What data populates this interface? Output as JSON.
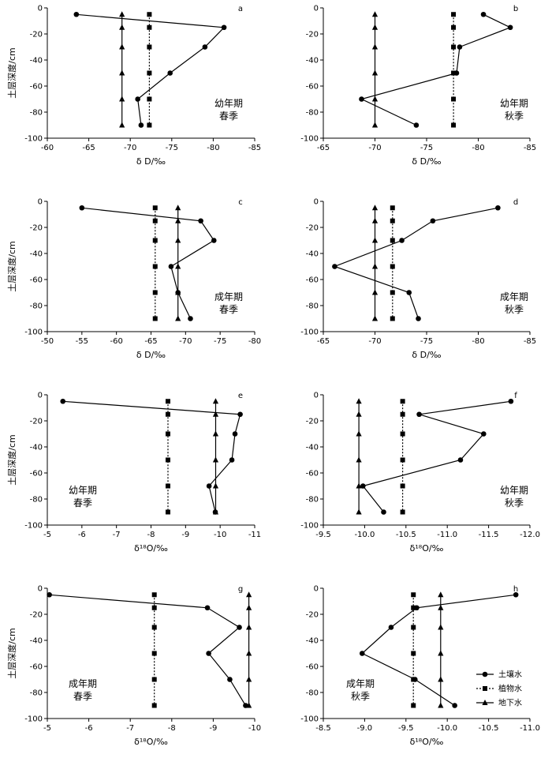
{
  "colors": {
    "ink": "#000000",
    "background": "#ffffff"
  },
  "legend": [
    {
      "label": "土壤水",
      "marker": "circle",
      "line": "solid"
    },
    {
      "label": "植物水",
      "marker": "square",
      "line": "dotted"
    },
    {
      "label": "地下水",
      "marker": "triangle",
      "line": "solid"
    }
  ],
  "chart_data": [
    {
      "id": "a",
      "type": "line",
      "letter": "a",
      "note": [
        "幼年期",
        "春季"
      ],
      "xlabel": "δ D/‰",
      "ylabel": "土层深度/cm",
      "xlim": [
        -60,
        -85
      ],
      "ylim": [
        -100,
        0
      ],
      "xticks": [
        -60,
        -65,
        -70,
        -75,
        -80,
        -85
      ],
      "yticks": [
        0,
        -20,
        -40,
        -60,
        -80,
        -100
      ],
      "xtick_labels": [
        "-60",
        "-65",
        "-70",
        "-75",
        "-80",
        "-85"
      ],
      "ytick_labels": [
        "0",
        "-20",
        "-40",
        "-60",
        "-80",
        "-100"
      ],
      "series": [
        {
          "name": "土壤水",
          "marker": "circle",
          "dash": "solid",
          "x": [
            -63.5,
            -81.3,
            -79.0,
            -74.8,
            -70.9,
            -71.3
          ],
          "y": [
            -5,
            -15,
            -30,
            -50,
            -70,
            -90
          ]
        },
        {
          "name": "植物水",
          "marker": "square",
          "dash": "dotted",
          "x": [
            -72.3,
            -72.3,
            -72.3,
            -72.3,
            -72.3,
            -72.3
          ],
          "y": [
            -5,
            -15,
            -30,
            -50,
            -70,
            -90
          ]
        },
        {
          "name": "地下水",
          "marker": "triangle",
          "dash": "solid",
          "x": [
            -69.0,
            -69.0,
            -69.0,
            -69.0,
            -69.0,
            -69.0
          ],
          "y": [
            -5,
            -15,
            -30,
            -50,
            -70,
            -90
          ]
        }
      ]
    },
    {
      "id": "b",
      "type": "line",
      "letter": "b",
      "note": [
        "幼年期",
        "秋季"
      ],
      "xlabel": "δ D/‰",
      "ylabel": "",
      "xlim": [
        -65,
        -85
      ],
      "ylim": [
        -100,
        0
      ],
      "xticks": [
        -65,
        -70,
        -75,
        -80,
        -85
      ],
      "yticks": [
        0,
        -20,
        -40,
        -60,
        -80,
        -100
      ],
      "xtick_labels": [
        "-65",
        "-70",
        "-75",
        "-80",
        "-85"
      ],
      "ytick_labels": [
        "0",
        "-20",
        "-40",
        "-60",
        "-80",
        "-100"
      ],
      "series": [
        {
          "name": "土壤水",
          "marker": "circle",
          "dash": "solid",
          "x": [
            -80.5,
            -83.1,
            -78.2,
            -77.9,
            -68.7,
            -74.0
          ],
          "y": [
            -5,
            -15,
            -30,
            -50,
            -70,
            -90
          ]
        },
        {
          "name": "植物水",
          "marker": "square",
          "dash": "dotted",
          "x": [
            -77.6,
            -77.6,
            -77.6,
            -77.6,
            -77.6,
            -77.6
          ],
          "y": [
            -5,
            -15,
            -30,
            -50,
            -70,
            -90
          ]
        },
        {
          "name": "地下水",
          "marker": "triangle",
          "dash": "solid",
          "x": [
            -70.0,
            -70.0,
            -70.0,
            -70.0,
            -70.0,
            -70.0
          ],
          "y": [
            -5,
            -15,
            -30,
            -50,
            -70,
            -90
          ]
        }
      ]
    },
    {
      "id": "c",
      "type": "line",
      "letter": "c",
      "note": [
        "成年期",
        "春季"
      ],
      "xlabel": "δ D/‰",
      "ylabel": "土层深度/cm",
      "xlim": [
        -50,
        -80
      ],
      "ylim": [
        -100,
        0
      ],
      "xticks": [
        -50,
        -55,
        -60,
        -65,
        -70,
        -75,
        -80
      ],
      "yticks": [
        0,
        -20,
        -40,
        -60,
        -80,
        -100
      ],
      "xtick_labels": [
        "-50",
        "-55",
        "-60",
        "-65",
        "-70",
        "-75",
        "-80"
      ],
      "ytick_labels": [
        "0",
        "-20",
        "-40",
        "-60",
        "-80",
        "-100"
      ],
      "series": [
        {
          "name": "土壤水",
          "marker": "circle",
          "dash": "solid",
          "x": [
            -55.0,
            -72.2,
            -74.1,
            -67.9,
            -68.9,
            -70.7
          ],
          "y": [
            -5,
            -15,
            -30,
            -50,
            -70,
            -90
          ]
        },
        {
          "name": "植物水",
          "marker": "square",
          "dash": "dotted",
          "x": [
            -65.6,
            -65.6,
            -65.6,
            -65.6,
            -65.6,
            -65.6
          ],
          "y": [
            -5,
            -15,
            -30,
            -50,
            -70,
            -90
          ]
        },
        {
          "name": "地下水",
          "marker": "triangle",
          "dash": "solid",
          "x": [
            -68.9,
            -68.9,
            -68.9,
            -68.9,
            -68.9,
            -68.9
          ],
          "y": [
            -5,
            -15,
            -30,
            -50,
            -70,
            -90
          ]
        }
      ]
    },
    {
      "id": "d",
      "type": "line",
      "letter": "d",
      "note": [
        "成年期",
        "秋季"
      ],
      "xlabel": "δ D/‰",
      "ylabel": "",
      "xlim": [
        -65,
        -85
      ],
      "ylim": [
        -100,
        0
      ],
      "xticks": [
        -65,
        -70,
        -75,
        -80,
        -85
      ],
      "yticks": [
        0,
        -20,
        -40,
        -60,
        -80,
        -100
      ],
      "xtick_labels": [
        "-65",
        "-70",
        "-75",
        "-80",
        "-85"
      ],
      "ytick_labels": [
        "0",
        "-20",
        "-40",
        "-60",
        "-80",
        "-100"
      ],
      "series": [
        {
          "name": "土壤水",
          "marker": "circle",
          "dash": "solid",
          "x": [
            -81.9,
            -75.6,
            -72.6,
            -66.1,
            -73.3,
            -74.2
          ],
          "y": [
            -5,
            -15,
            -30,
            -50,
            -70,
            -90
          ]
        },
        {
          "name": "植物水",
          "marker": "square",
          "dash": "dotted",
          "x": [
            -71.7,
            -71.7,
            -71.7,
            -71.7,
            -71.7,
            -71.7
          ],
          "y": [
            -5,
            -15,
            -30,
            -50,
            -70,
            -90
          ]
        },
        {
          "name": "地下水",
          "marker": "triangle",
          "dash": "solid",
          "x": [
            -70.0,
            -70.0,
            -70.0,
            -70.0,
            -70.0,
            -70.0
          ],
          "y": [
            -5,
            -15,
            -30,
            -50,
            -70,
            -90
          ]
        }
      ]
    },
    {
      "id": "e",
      "type": "line",
      "letter": "e",
      "note": [
        "幼年期",
        "春季"
      ],
      "xlabel": "δ¹⁸O/‰",
      "ylabel": "土层深度/cm",
      "xlim": [
        -5,
        -11
      ],
      "ylim": [
        -100,
        0
      ],
      "xticks": [
        -5,
        -6,
        -7,
        -8,
        -9,
        -10,
        -11
      ],
      "yticks": [
        0,
        -20,
        -40,
        -60,
        -80,
        -100
      ],
      "xtick_labels": [
        "-5",
        "-6",
        "-7",
        "-8",
        "-9",
        "-10",
        "-11"
      ],
      "ytick_labels": [
        "0",
        "-20",
        "-40",
        "-60",
        "-80",
        "-100"
      ],
      "series": [
        {
          "name": "土壤水",
          "marker": "circle",
          "dash": "solid",
          "x": [
            -5.45,
            -10.58,
            -10.43,
            -10.34,
            -9.68,
            -9.86
          ],
          "y": [
            -5,
            -15,
            -30,
            -50,
            -70,
            -90
          ]
        },
        {
          "name": "植物水",
          "marker": "square",
          "dash": "dotted",
          "x": [
            -8.49,
            -8.49,
            -8.49,
            -8.49,
            -8.49,
            -8.49
          ],
          "y": [
            -5,
            -15,
            -30,
            -50,
            -70,
            -90
          ]
        },
        {
          "name": "地下水",
          "marker": "triangle",
          "dash": "solid",
          "x": [
            -9.87,
            -9.87,
            -9.87,
            -9.87,
            -9.87,
            -9.87
          ],
          "y": [
            -5,
            -15,
            -30,
            -50,
            -70,
            -90
          ]
        }
      ]
    },
    {
      "id": "f",
      "type": "line",
      "letter": "f",
      "note": [
        "幼年期",
        "秋季"
      ],
      "xlabel": "δ¹⁸O/‰",
      "ylabel": "",
      "xlim": [
        -9.5,
        -12.0
      ],
      "ylim": [
        -100,
        0
      ],
      "xticks": [
        -9.5,
        -10.0,
        -10.5,
        -11.0,
        -11.5,
        -12.0
      ],
      "yticks": [
        0,
        -20,
        -40,
        -60,
        -80,
        -100
      ],
      "xtick_labels": [
        "-9.5",
        "-10.0",
        "-10.5",
        "-11.0",
        "-11.5",
        "-12.0"
      ],
      "ytick_labels": [
        "0",
        "-20",
        "-40",
        "-60",
        "-80",
        "-100"
      ],
      "series": [
        {
          "name": "土壤水",
          "marker": "circle",
          "dash": "solid",
          "x": [
            -11.77,
            -10.66,
            -11.44,
            -11.16,
            -9.98,
            -10.23
          ],
          "y": [
            -5,
            -15,
            -30,
            -50,
            -70,
            -90
          ]
        },
        {
          "name": "植物水",
          "marker": "square",
          "dash": "dotted",
          "x": [
            -10.46,
            -10.46,
            -10.46,
            -10.46,
            -10.46,
            -10.46
          ],
          "y": [
            -5,
            -15,
            -30,
            -50,
            -70,
            -90
          ]
        },
        {
          "name": "地下水",
          "marker": "triangle",
          "dash": "solid",
          "x": [
            -9.93,
            -9.93,
            -9.93,
            -9.93,
            -9.93,
            -9.93
          ],
          "y": [
            -5,
            -15,
            -30,
            -50,
            -70,
            -90
          ]
        }
      ]
    },
    {
      "id": "g",
      "type": "line",
      "letter": "g",
      "note": [
        "成年期",
        "春季"
      ],
      "xlabel": "δ¹⁸O/‰",
      "ylabel": "土层深度/cm",
      "xlim": [
        -5,
        -10
      ],
      "ylim": [
        -100,
        0
      ],
      "xticks": [
        -5,
        -6,
        -7,
        -8,
        -9,
        -10
      ],
      "yticks": [
        0,
        -20,
        -40,
        -60,
        -80,
        -100
      ],
      "xtick_labels": [
        "-5",
        "-6",
        "-7",
        "-8",
        "-9",
        "-10"
      ],
      "ytick_labels": [
        "0",
        "-20",
        "-40",
        "-60",
        "-80",
        "-100"
      ],
      "series": [
        {
          "name": "土壤水",
          "marker": "circle",
          "dash": "solid",
          "x": [
            -5.05,
            -8.86,
            -9.63,
            -8.89,
            -9.4,
            -9.78
          ],
          "y": [
            -5,
            -15,
            -30,
            -50,
            -70,
            -90
          ]
        },
        {
          "name": "植物水",
          "marker": "square",
          "dash": "dotted",
          "x": [
            -7.58,
            -7.58,
            -7.58,
            -7.58,
            -7.58,
            -7.58
          ],
          "y": [
            -5,
            -15,
            -30,
            -50,
            -70,
            -90
          ]
        },
        {
          "name": "地下水",
          "marker": "triangle",
          "dash": "solid",
          "x": [
            -9.86,
            -9.86,
            -9.86,
            -9.86,
            -9.86,
            -9.86
          ],
          "y": [
            -5,
            -15,
            -30,
            -50,
            -70,
            -90
          ]
        }
      ]
    },
    {
      "id": "h",
      "type": "line",
      "letter": "h",
      "note": [
        "成年期",
        "秋季"
      ],
      "xlabel": "δ¹⁸O/‰",
      "ylabel": "",
      "xlim": [
        -8.5,
        -11.0
      ],
      "ylim": [
        -100,
        0
      ],
      "xticks": [
        -8.5,
        -9.0,
        -9.5,
        -10.0,
        -10.5,
        -11.0
      ],
      "yticks": [
        0,
        -20,
        -40,
        -60,
        -80,
        -100
      ],
      "xtick_labels": [
        "-8.5",
        "-9.0",
        "-9.5",
        "-10.0",
        "-10.5",
        "-11.0"
      ],
      "ytick_labels": [
        "0",
        "-20",
        "-40",
        "-60",
        "-80",
        "-100"
      ],
      "series": [
        {
          "name": "土壤水",
          "marker": "circle",
          "dash": "solid",
          "x": [
            -10.83,
            -9.63,
            -9.32,
            -8.97,
            -9.61,
            -10.09
          ],
          "y": [
            -5,
            -15,
            -30,
            -50,
            -70,
            -90
          ]
        },
        {
          "name": "植物水",
          "marker": "square",
          "dash": "dotted",
          "x": [
            -9.59,
            -9.59,
            -9.59,
            -9.59,
            -9.59,
            -9.59
          ],
          "y": [
            -5,
            -15,
            -30,
            -50,
            -70,
            -90
          ]
        },
        {
          "name": "地下水",
          "marker": "triangle",
          "dash": "solid",
          "x": [
            -9.92,
            -9.92,
            -9.92,
            -9.92,
            -9.92,
            -9.92
          ],
          "y": [
            -5,
            -15,
            -30,
            -50,
            -70,
            -90
          ]
        }
      ]
    }
  ]
}
